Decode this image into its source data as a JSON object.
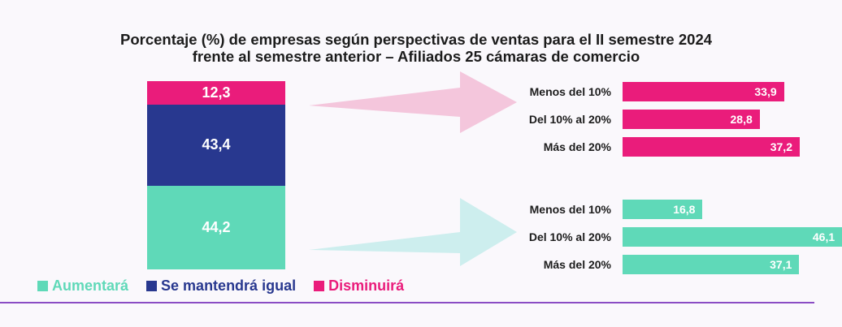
{
  "chart_data": {
    "type": "bar",
    "title_lines": [
      "Porcentaje (%) de empresas según perspectivas de ventas para el II semestre 2024",
      "frente al semestre anterior –  Afiliados 25 cámaras de comercio"
    ],
    "stacked": {
      "segments": [
        {
          "name": "Disminuirá",
          "value": 12.3,
          "label": "12,3"
        },
        {
          "name": "Se mantendrá igual",
          "value": 43.4,
          "label": "43,4"
        },
        {
          "name": "Aumentará",
          "value": 44.2,
          "label": "44,2"
        }
      ]
    },
    "groups": [
      {
        "series": "Disminuirá",
        "categories": [
          "Menos del 10%",
          "Del 10% al 20%",
          "Más del 20%"
        ],
        "values": [
          33.9,
          28.8,
          37.2
        ],
        "labels": [
          "33,9",
          "28,8",
          "37,2"
        ]
      },
      {
        "series": "Aumentará",
        "categories": [
          "Menos del 10%",
          "Del 10% al 20%",
          "Más del 20%"
        ],
        "values": [
          16.8,
          46.1,
          37.1
        ],
        "labels": [
          "16,8",
          "46,1",
          "37,1"
        ]
      }
    ],
    "legend": [
      "Aumentará",
      "Se mantendrá igual",
      "Disminuirá"
    ],
    "legend_placement": "bottom-left"
  },
  "colors": {
    "Aumentará": "#5fd9b8",
    "Se mantendrá igual": "#28388f",
    "Disminuirá": "#ea1c7b",
    "arrow_pink": "#f4c6dc",
    "arrow_teal": "#cdeeee"
  }
}
